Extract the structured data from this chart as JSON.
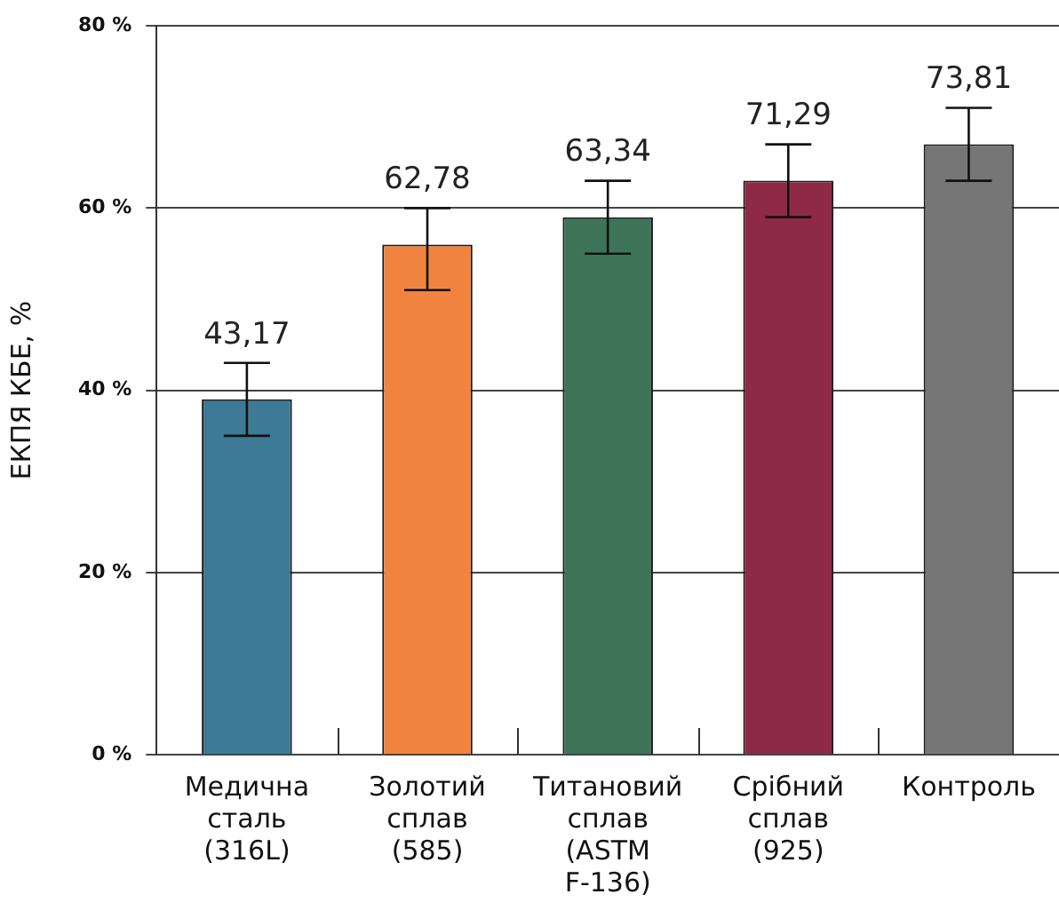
{
  "chart_data": {
    "type": "bar",
    "ylabel": "ЕКПЯ КБЕ, %",
    "categories": [
      "Медична сталь (316L)",
      "Золотий сплав (585)",
      "Титановий сплав (ASTM F-136)",
      "Срібний сплав (925)",
      "Контроль"
    ],
    "values": [
      39,
      56,
      59,
      63,
      67
    ],
    "colors": [
      "#3d7a96",
      "#f0843e",
      "#3d7457",
      "#8e2a47",
      "#767676"
    ],
    "errors": [
      4,
      [
        51,
        60
      ],
      4,
      4,
      4
    ],
    "annotations": [
      {
        "text": "43,17",
        "x": "Медична сталь (316L)",
        "y": 43
      },
      {
        "text": "62,78",
        "x": "Золотий сплав (585)",
        "y": 60
      },
      {
        "text": "63,34",
        "x": "Титановий сплав (ASTM F-136)",
        "y": 63
      },
      {
        "text": "71,29",
        "x": "Срібний сплав (925)",
        "y": 67
      },
      {
        "text": "73,81",
        "x": "Контроль",
        "y": 71
      }
    ],
    "ylim": [
      0,
      80
    ],
    "yticks": [
      {
        "value": 0,
        "label": "0 %"
      },
      {
        "value": 20,
        "label": "20 %"
      },
      {
        "value": 40,
        "label": "40 %"
      },
      {
        "value": 60,
        "label": "60 %"
      },
      {
        "value": 80,
        "label": "80 %"
      }
    ],
    "grid": "y",
    "legend": false
  }
}
